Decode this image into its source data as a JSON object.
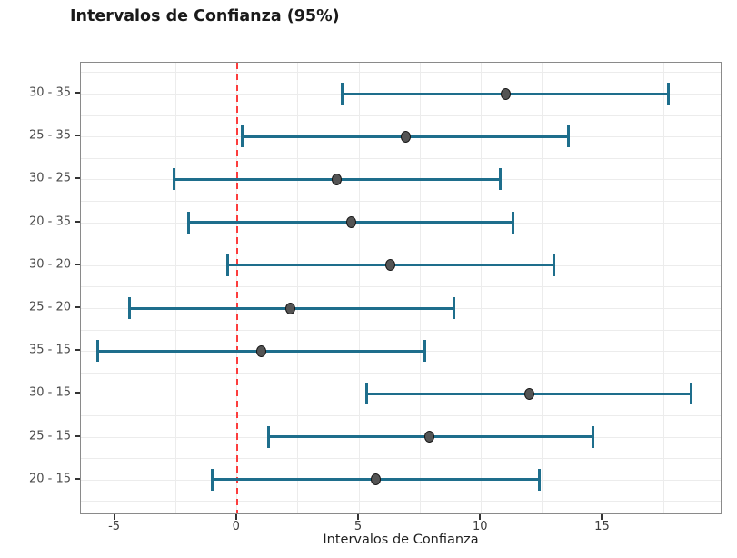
{
  "title": "Intervalos de Confianza (95%)",
  "chart_data": {
    "type": "errorbar",
    "title": "Intervalos de Confianza (95%)",
    "xlabel": "Intervalos de Confianza",
    "ylabel": "",
    "orientation": "horizontal",
    "xlim": [
      -6.4,
      19.9
    ],
    "x_ticks": [
      -5,
      0,
      5,
      10,
      15
    ],
    "x_tick_labels": [
      "-5",
      "0",
      "5",
      "10",
      "15"
    ],
    "grid": true,
    "legend": false,
    "reference_line_x": 0,
    "rows": [
      {
        "label": "30 - 35",
        "mean": 11.0,
        "lower": 4.3,
        "upper": 17.7
      },
      {
        "label": "25 - 35",
        "mean": 6.9,
        "lower": 0.2,
        "upper": 13.6
      },
      {
        "label": "30 - 25",
        "mean": 4.1,
        "lower": -2.6,
        "upper": 10.8
      },
      {
        "label": "20 - 35",
        "mean": 4.7,
        "lower": -2.0,
        "upper": 11.3
      },
      {
        "label": "30 - 20",
        "mean": 6.3,
        "lower": -0.4,
        "upper": 13.0
      },
      {
        "label": "25 - 20",
        "mean": 2.2,
        "lower": -4.4,
        "upper": 8.9
      },
      {
        "label": "35 - 15",
        "mean": 1.0,
        "lower": -5.7,
        "upper": 7.7
      },
      {
        "label": "30 - 15",
        "mean": 12.0,
        "lower": 5.3,
        "upper": 18.6
      },
      {
        "label": "25 - 15",
        "mean": 7.9,
        "lower": 1.3,
        "upper": 14.6
      },
      {
        "label": "20 - 15",
        "mean": 5.7,
        "lower": -1.0,
        "upper": 12.4
      }
    ],
    "colors": {
      "interval": "#1e6e8c",
      "point_fill": "#545454",
      "point_stroke": "#161616",
      "reference_line": "#fc3d3d",
      "grid": "#ececec",
      "panel_border": "#8a8a8a"
    }
  }
}
